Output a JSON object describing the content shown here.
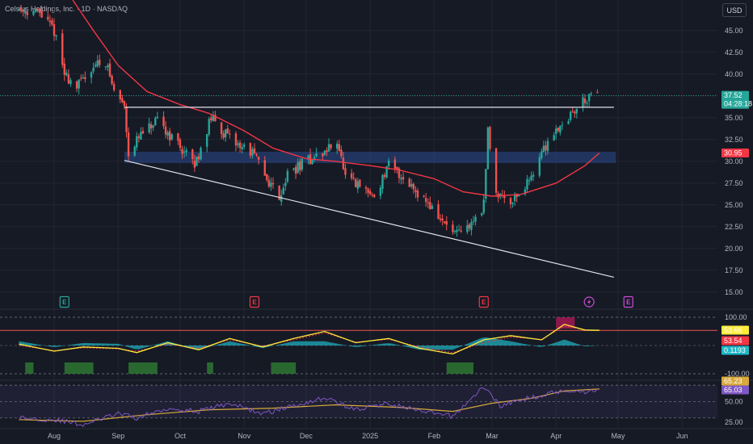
{
  "header": {
    "title": "Celsius Holdings, Inc. · 1D · NASDAQ",
    "currency_button": "USD"
  },
  "colors": {
    "background": "#161a25",
    "grid": "#232632",
    "text": "#b2b5be",
    "up": "#26a69a",
    "down": "#ef5350",
    "ma": "#f23645",
    "zone": "#2a4a8c",
    "stoch_fast": "#ffeb3b",
    "stoch_slow": "#f23645",
    "stoch_hist": "#1fb6c5",
    "oversold_fill": "#2e7d32",
    "overbought_fill": "#c2185b",
    "rsi": "#7e57c2",
    "rsi_ma": "#d8a93b",
    "lightning": "#cc4bd8",
    "earnings": "#f23645",
    "dividend": "#26a69a"
  },
  "time_axis": [
    "Aug",
    "Sep",
    "Oct",
    "Nov",
    "Dec",
    "2025",
    "Feb",
    "Mar",
    "Apr",
    "May",
    "Jun"
  ],
  "chart_data": [
    {
      "type": "candlestick",
      "title": "Celsius Holdings, Inc. · 1D · NASDAQ",
      "y_ticks": [
        15.0,
        17.5,
        20.0,
        22.5,
        25.0,
        27.5,
        30.0,
        32.5,
        35.0,
        37.5,
        40.0,
        42.5,
        45.0
      ],
      "y_tick_labels": [
        "15.00",
        "17.50",
        "20.00",
        "22.50",
        "25.00",
        "27.50",
        "30.00",
        "32.50",
        "35.00",
        "37.50",
        "40.00",
        "42.50",
        "45.00"
      ],
      "ylim": [
        13.5,
        48.5
      ],
      "price_path": [
        [
          "2024-07-15",
          47.5
        ],
        [
          "2024-07-25",
          47.0
        ],
        [
          "2024-08-01",
          45.0
        ],
        [
          "2024-08-06",
          40.0
        ],
        [
          "2024-08-12",
          38.5
        ],
        [
          "2024-08-20",
          41.0
        ],
        [
          "2024-08-26",
          41.5
        ],
        [
          "2024-08-30",
          38.0
        ],
        [
          "2024-09-04",
          36.5
        ],
        [
          "2024-09-06",
          31.0
        ],
        [
          "2024-09-12",
          33.0
        ],
        [
          "2024-09-20",
          34.5
        ],
        [
          "2024-09-30",
          32.0
        ],
        [
          "2024-10-08",
          29.5
        ],
        [
          "2024-10-16",
          35.0
        ],
        [
          "2024-10-25",
          32.5
        ],
        [
          "2024-11-05",
          31.0
        ],
        [
          "2024-11-12",
          28.0
        ],
        [
          "2024-11-18",
          26.0
        ],
        [
          "2024-11-22",
          28.5
        ],
        [
          "2024-12-01",
          30.0
        ],
        [
          "2024-12-10",
          31.0
        ],
        [
          "2024-12-16",
          32.5
        ],
        [
          "2024-12-20",
          28.0
        ],
        [
          "2025-01-03",
          26.0
        ],
        [
          "2025-01-10",
          29.5
        ],
        [
          "2025-01-20",
          27.5
        ],
        [
          "2025-01-28",
          25.5
        ],
        [
          "2025-02-05",
          23.0
        ],
        [
          "2025-02-12",
          21.5
        ],
        [
          "2025-02-18",
          22.5
        ],
        [
          "2025-02-25",
          25.0
        ],
        [
          "2025-02-27",
          33.5
        ],
        [
          "2025-03-03",
          26.5
        ],
        [
          "2025-03-10",
          25.5
        ],
        [
          "2025-03-17",
          27.0
        ],
        [
          "2025-03-24",
          30.5
        ],
        [
          "2025-03-31",
          33.5
        ],
        [
          "2025-04-07",
          35.0
        ],
        [
          "2025-04-14",
          37.0
        ],
        [
          "2025-04-21",
          37.52
        ]
      ],
      "moving_average": [
        [
          "2024-08-10",
          48.5
        ],
        [
          "2024-08-20",
          45.0
        ],
        [
          "2024-09-01",
          41.0
        ],
        [
          "2024-09-15",
          38.0
        ],
        [
          "2024-10-01",
          36.5
        ],
        [
          "2024-10-15",
          35.5
        ],
        [
          "2024-11-01",
          33.5
        ],
        [
          "2024-11-15",
          31.5
        ],
        [
          "2024-12-01",
          30.3
        ],
        [
          "2024-12-15",
          30.0
        ],
        [
          "2025-01-01",
          29.5
        ],
        [
          "2025-01-15",
          29.0
        ],
        [
          "2025-02-01",
          28.0
        ],
        [
          "2025-02-15",
          26.5
        ],
        [
          "2025-03-01",
          26.0
        ],
        [
          "2025-03-15",
          26.2
        ],
        [
          "2025-04-01",
          27.5
        ],
        [
          "2025-04-15",
          29.5
        ],
        [
          "2025-04-22",
          30.95
        ]
      ],
      "resistance_line": {
        "start": [
          "2024-09-04",
          36.2
        ],
        "end": [
          "2025-04-29",
          36.2
        ]
      },
      "support_line": {
        "start": [
          "2024-09-04",
          30.1
        ],
        "end": [
          "2025-04-29",
          16.7
        ]
      },
      "demand_zone": {
        "start": "2024-09-04",
        "end": "2025-04-30",
        "low": 29.8,
        "high": 31.1
      },
      "badges": [
        {
          "label": "37.52",
          "sub": "04:28:18",
          "value": 37.52,
          "color": "#26a69a"
        },
        {
          "label": "30.95",
          "value": 30.95,
          "color": "#f23645"
        }
      ],
      "events": [
        {
          "date": "2024-08-06",
          "type": "dividend",
          "label": "E"
        },
        {
          "date": "2024-11-06",
          "type": "earnings",
          "label": "E"
        },
        {
          "date": "2025-02-25",
          "type": "earnings",
          "label": "E"
        },
        {
          "date": "2025-04-17",
          "type": "lightning",
          "label": ""
        },
        {
          "date": "2025-05-06",
          "type": "earnings-upcoming",
          "label": "E"
        }
      ]
    },
    {
      "type": "line",
      "ylim": [
        -120,
        120
      ],
      "y_ticks": [
        100.0,
        -100.0
      ],
      "y_tick_labels": [
        "100.00",
        "-100.00"
      ],
      "level_line": 53.66,
      "fast_line": [
        [
          "2024-07-15",
          5
        ],
        [
          "2024-08-01",
          -20
        ],
        [
          "2024-08-15",
          -5
        ],
        [
          "2024-09-01",
          -10
        ],
        [
          "2024-09-10",
          -25
        ],
        [
          "2024-09-25",
          10
        ],
        [
          "2024-10-10",
          -15
        ],
        [
          "2024-10-25",
          25
        ],
        [
          "2024-11-10",
          -5
        ],
        [
          "2024-11-25",
          25
        ],
        [
          "2024-12-10",
          50
        ],
        [
          "2024-12-25",
          10
        ],
        [
          "2025-01-10",
          25
        ],
        [
          "2025-01-25",
          -10
        ],
        [
          "2025-02-10",
          -30
        ],
        [
          "2025-02-25",
          20
        ],
        [
          "2025-03-10",
          35
        ],
        [
          "2025-03-25",
          20
        ],
        [
          "2025-04-05",
          75
        ],
        [
          "2025-04-15",
          55
        ],
        [
          "2025-04-22",
          53.66
        ]
      ],
      "slow_line": [
        [
          "2024-07-15",
          0
        ],
        [
          "2024-08-01",
          -18
        ],
        [
          "2024-08-15",
          -8
        ],
        [
          "2024-09-01",
          -12
        ],
        [
          "2024-09-10",
          -20
        ],
        [
          "2024-09-25",
          5
        ],
        [
          "2024-10-10",
          -10
        ],
        [
          "2024-10-25",
          20
        ],
        [
          "2024-11-10",
          -2
        ],
        [
          "2024-11-25",
          20
        ],
        [
          "2024-12-10",
          45
        ],
        [
          "2024-12-25",
          12
        ],
        [
          "2025-01-10",
          22
        ],
        [
          "2025-01-25",
          -5
        ],
        [
          "2025-02-10",
          -25
        ],
        [
          "2025-02-25",
          10
        ],
        [
          "2025-03-10",
          30
        ],
        [
          "2025-03-25",
          22
        ],
        [
          "2025-04-05",
          68
        ],
        [
          "2025-04-15",
          56
        ],
        [
          "2025-04-22",
          53.54
        ]
      ],
      "oversold_spans": [
        [
          "2024-07-18",
          "2024-07-22"
        ],
        [
          "2024-08-06",
          "2024-08-20"
        ],
        [
          "2024-09-06",
          "2024-09-20"
        ],
        [
          "2024-10-14",
          "2024-10-17"
        ],
        [
          "2024-11-14",
          "2024-11-26"
        ],
        [
          "2025-02-07",
          "2025-02-20"
        ]
      ],
      "overbought_spans": [
        [
          "2025-04-01",
          "2025-04-10"
        ]
      ],
      "badges": [
        {
          "label": "53.66",
          "value": 53.66,
          "color": "#ffeb3b",
          "text_color": "#131722"
        },
        {
          "label": "53.54",
          "value": 53.54,
          "color": "#f23645"
        },
        {
          "label": "0.1193",
          "value": 0.1193,
          "color": "#1fb6c5"
        }
      ]
    },
    {
      "type": "line",
      "ylim": [
        18,
        75
      ],
      "y_ticks": [
        50.0,
        25.0
      ],
      "y_tick_labels": [
        "50.00",
        "25.00"
      ],
      "rsi_line": [
        [
          "2024-07-15",
          30
        ],
        [
          "2024-08-01",
          28
        ],
        [
          "2024-08-15",
          22
        ],
        [
          "2024-09-01",
          35
        ],
        [
          "2024-09-10",
          30
        ],
        [
          "2024-09-25",
          42
        ],
        [
          "2024-10-10",
          38
        ],
        [
          "2024-10-25",
          48
        ],
        [
          "2024-11-10",
          35
        ],
        [
          "2024-11-25",
          45
        ],
        [
          "2024-12-10",
          55
        ],
        [
          "2024-12-25",
          40
        ],
        [
          "2025-01-10",
          48
        ],
        [
          "2025-01-25",
          38
        ],
        [
          "2025-02-10",
          32
        ],
        [
          "2025-02-25",
          68
        ],
        [
          "2025-03-05",
          45
        ],
        [
          "2025-03-20",
          55
        ],
        [
          "2025-04-05",
          64
        ],
        [
          "2025-04-15",
          62
        ],
        [
          "2025-04-22",
          65.03
        ]
      ],
      "rsi_ma": [
        [
          "2024-07-15",
          28
        ],
        [
          "2024-08-15",
          26
        ],
        [
          "2024-09-15",
          34
        ],
        [
          "2024-10-15",
          40
        ],
        [
          "2024-11-15",
          42
        ],
        [
          "2024-12-15",
          46
        ],
        [
          "2025-01-15",
          43
        ],
        [
          "2025-02-10",
          38
        ],
        [
          "2025-03-01",
          48
        ],
        [
          "2025-03-20",
          54
        ],
        [
          "2025-04-05",
          63
        ],
        [
          "2025-04-22",
          65.23
        ]
      ],
      "badges": [
        {
          "label": "65.23",
          "value": 65.23,
          "color": "#d8a93b",
          "text_color": "#131722"
        },
        {
          "label": "65.03",
          "value": 65.03,
          "color": "#7e57c2"
        }
      ]
    }
  ]
}
